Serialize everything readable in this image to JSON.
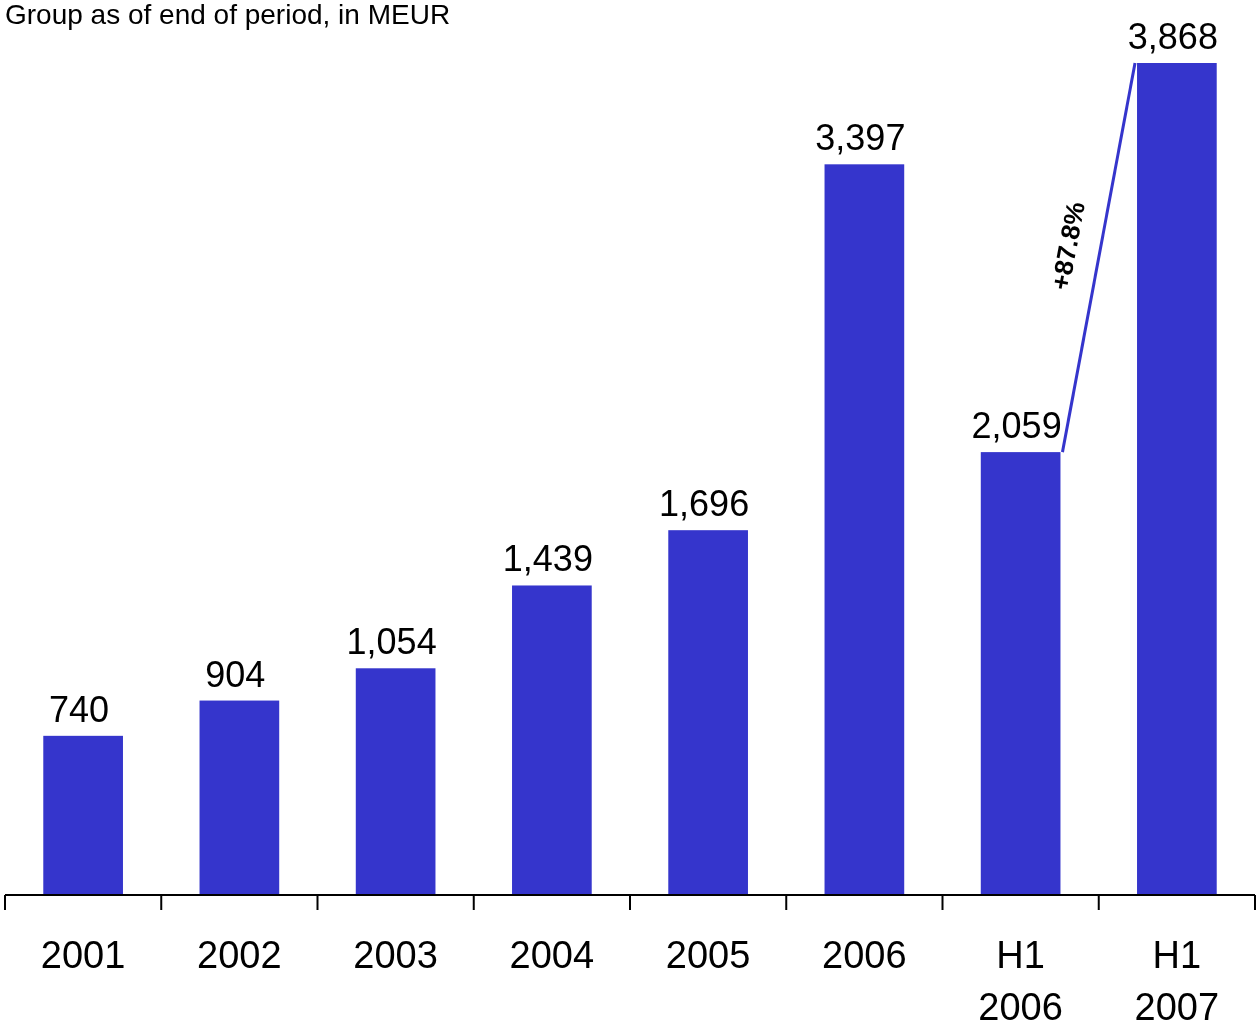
{
  "chart_data": {
    "type": "bar",
    "title": "Group as of end of period, in MEUR",
    "categories": [
      "2001",
      "2002",
      "2003",
      "2004",
      "2005",
      "2006",
      "H1\n2006",
      "H1\n2007"
    ],
    "values": [
      740,
      904,
      1054,
      1439,
      1696,
      3397,
      2059,
      3868
    ],
    "color": "#3535cc",
    "value_labels": [
      "740",
      "904",
      "1,054",
      "1,439",
      "1,696",
      "3,397",
      "2,059",
      "3,868"
    ],
    "annotations": [
      "+87.8%"
    ]
  }
}
